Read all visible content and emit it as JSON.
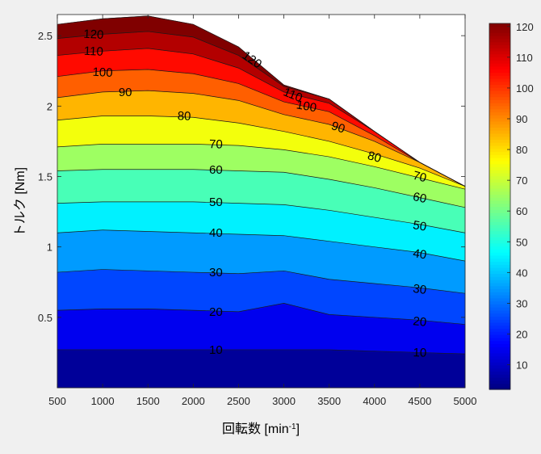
{
  "chart_data": {
    "type": "contourf",
    "title": "",
    "xlabel": "回転数 [min",
    "xlabel_sup": "-1",
    "xlabel_tail": "]",
    "ylabel": "トルク [Nm]",
    "xlim": [
      500,
      5000
    ],
    "ylim": [
      0,
      2.65
    ],
    "xticks": [
      500,
      1000,
      1500,
      2000,
      2500,
      3000,
      3500,
      4000,
      4500,
      5000
    ],
    "yticks": [
      0.5,
      1,
      1.5,
      2,
      2.5
    ],
    "ytick_labels": [
      "0.5",
      "1",
      "1.5",
      "2",
      "2.5"
    ],
    "colorbar": {
      "min": 2,
      "max": 121,
      "ticks": [
        10,
        20,
        30,
        40,
        50,
        60,
        70,
        80,
        90,
        100,
        110,
        120
      ],
      "colormap": "jet",
      "position": "right"
    },
    "grid": false,
    "speed": [
      500,
      1000,
      1500,
      2000,
      2500,
      3000,
      3500,
      4000,
      4500,
      5000
    ],
    "max_torque_curve": [
      2.58,
      2.62,
      2.64,
      2.58,
      2.42,
      2.15,
      2.05,
      1.82,
      1.6,
      1.43
    ],
    "contour_levels": [
      {
        "level": 10,
        "torque": [
          0.27,
          0.27,
          0.27,
          0.27,
          0.27,
          0.27,
          0.27,
          0.26,
          0.25,
          0.24
        ]
      },
      {
        "level": 20,
        "torque": [
          0.55,
          0.56,
          0.56,
          0.55,
          0.54,
          0.6,
          0.52,
          0.5,
          0.48,
          0.45
        ]
      },
      {
        "level": 30,
        "torque": [
          0.82,
          0.84,
          0.83,
          0.82,
          0.81,
          0.83,
          0.77,
          0.74,
          0.71,
          0.67
        ]
      },
      {
        "level": 40,
        "torque": [
          1.1,
          1.12,
          1.11,
          1.1,
          1.09,
          1.08,
          1.04,
          1.0,
          0.96,
          0.9
        ]
      },
      {
        "level": 50,
        "torque": [
          1.31,
          1.32,
          1.32,
          1.32,
          1.31,
          1.3,
          1.26,
          1.21,
          1.16,
          1.1
        ]
      },
      {
        "level": 60,
        "torque": [
          1.54,
          1.55,
          1.55,
          1.55,
          1.54,
          1.53,
          1.48,
          1.42,
          1.35,
          1.28
        ]
      },
      {
        "level": 70,
        "torque": [
          1.71,
          1.73,
          1.73,
          1.73,
          1.72,
          1.69,
          1.64,
          1.57,
          1.49,
          1.41
        ]
      },
      {
        "level": 80,
        "torque": [
          1.9,
          1.93,
          1.93,
          1.92,
          1.88,
          1.82,
          1.75,
          1.66,
          1.56,
          1.43
        ]
      },
      {
        "level": 90,
        "torque": [
          2.06,
          2.1,
          2.11,
          2.09,
          2.04,
          1.94,
          1.87,
          1.75,
          1.6,
          1.43
        ]
      },
      {
        "level": 100,
        "torque": [
          2.21,
          2.25,
          2.26,
          2.23,
          2.16,
          2.03,
          1.96,
          1.79,
          1.6,
          1.43
        ]
      },
      {
        "level": 110,
        "torque": [
          2.36,
          2.39,
          2.41,
          2.37,
          2.27,
          2.1,
          2.02,
          1.82,
          1.6,
          1.43
        ]
      },
      {
        "level": 120,
        "torque": [
          2.48,
          2.51,
          2.53,
          2.49,
          2.36,
          2.14,
          2.05,
          1.82,
          1.6,
          1.43
        ]
      }
    ],
    "contour_labels": [
      {
        "text": "10",
        "x": 2250,
        "y": 0.27,
        "angle": 0
      },
      {
        "text": "10",
        "x": 4500,
        "y": 0.25,
        "angle": 2
      },
      {
        "text": "20",
        "x": 2250,
        "y": 0.54,
        "angle": 0
      },
      {
        "text": "20",
        "x": 4500,
        "y": 0.47,
        "angle": 6
      },
      {
        "text": "30",
        "x": 2250,
        "y": 0.82,
        "angle": 0
      },
      {
        "text": "30",
        "x": 4500,
        "y": 0.7,
        "angle": 8
      },
      {
        "text": "40",
        "x": 2250,
        "y": 1.1,
        "angle": 0
      },
      {
        "text": "40",
        "x": 4500,
        "y": 0.95,
        "angle": 9
      },
      {
        "text": "50",
        "x": 2250,
        "y": 1.32,
        "angle": 0
      },
      {
        "text": "50",
        "x": 4500,
        "y": 1.15,
        "angle": 10
      },
      {
        "text": "60",
        "x": 2250,
        "y": 1.55,
        "angle": 0
      },
      {
        "text": "60",
        "x": 4500,
        "y": 1.35,
        "angle": 12
      },
      {
        "text": "70",
        "x": 2250,
        "y": 1.73,
        "angle": 2
      },
      {
        "text": "70",
        "x": 4500,
        "y": 1.5,
        "angle": 14
      },
      {
        "text": "80",
        "x": 1900,
        "y": 1.93,
        "angle": 2
      },
      {
        "text": "80",
        "x": 4000,
        "y": 1.64,
        "angle": 16
      },
      {
        "text": "90",
        "x": 1250,
        "y": 2.1,
        "angle": 0
      },
      {
        "text": "90",
        "x": 3600,
        "y": 1.85,
        "angle": 18
      },
      {
        "text": "100",
        "x": 1000,
        "y": 2.24,
        "angle": 3
      },
      {
        "text": "100",
        "x": 3250,
        "y": 2.0,
        "angle": 10
      },
      {
        "text": "110",
        "x": 900,
        "y": 2.39,
        "angle": 3
      },
      {
        "text": "110",
        "x": 3100,
        "y": 2.08,
        "angle": 22
      },
      {
        "text": "120",
        "x": 900,
        "y": 2.51,
        "angle": 3
      },
      {
        "text": "120",
        "x": 2650,
        "y": 2.33,
        "angle": 35
      }
    ]
  }
}
